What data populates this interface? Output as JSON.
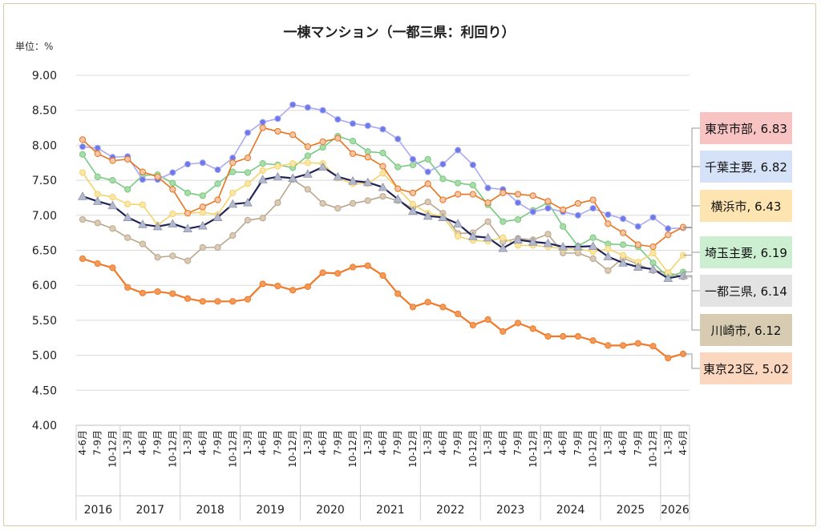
{
  "chart_data": {
    "type": "line",
    "title": "一棟マンション（一都三県：利回り）",
    "unit_label": "単位：%",
    "ylim": [
      4.0,
      9.0
    ],
    "y_ticks": [
      "9.00",
      "8.50",
      "8.00",
      "7.50",
      "7.00",
      "6.50",
      "6.00",
      "5.50",
      "5.00",
      "4.50",
      "4.00"
    ],
    "grid": true,
    "legend_placement": "right",
    "categories": [
      "4-6月",
      "7-9月",
      "10-12月",
      "1-3月",
      "4-6月",
      "7-9月",
      "10-12月",
      "1-3月",
      "4-6月",
      "7-9月",
      "10-12月",
      "1-3月",
      "4-6月",
      "7-9月",
      "10-12月",
      "1-3月",
      "4-6月",
      "7-9月",
      "10-12月",
      "1-3月",
      "4-6月",
      "7-9月",
      "10-12月",
      "1-3月",
      "4-6月",
      "7-9月",
      "10-12月",
      "1-3月",
      "4-6月",
      "7-9月",
      "10-12月",
      "1-3月",
      "4-6月",
      "7-9月",
      "10-12月",
      "1-3月",
      "4-6月",
      "7-9月",
      "10-12月",
      "1-3月",
      "4-6月"
    ],
    "years": [
      {
        "label": "2016",
        "start": 0,
        "end": 2
      },
      {
        "label": "2017",
        "start": 3,
        "end": 6
      },
      {
        "label": "2018",
        "start": 7,
        "end": 10
      },
      {
        "label": "2019",
        "start": 11,
        "end": 14
      },
      {
        "label": "2020",
        "start": 15,
        "end": 18
      },
      {
        "label": "2021",
        "start": 19,
        "end": 22
      },
      {
        "label": "2022",
        "start": 23,
        "end": 26
      },
      {
        "label": "2023",
        "start": 27,
        "end": 30
      },
      {
        "label": "2024",
        "start": 31,
        "end": 34
      },
      {
        "label": "2025",
        "start": 35,
        "end": 38
      },
      {
        "label": "2026",
        "start": 39,
        "end": 40
      }
    ],
    "series": [
      {
        "name": "東京市部",
        "label": "東京市部, 6.83",
        "color": "#e8741f",
        "marker_fill": "#f6c6a6",
        "marker": "circle",
        "line_width": 1.6,
        "box_fill": "#f7c3c3",
        "values": [
          8.08,
          7.88,
          7.78,
          7.8,
          7.62,
          7.55,
          7.37,
          7.03,
          7.12,
          7.22,
          7.75,
          7.82,
          8.25,
          8.2,
          8.15,
          7.98,
          8.05,
          8.1,
          7.88,
          7.83,
          7.7,
          7.38,
          7.32,
          7.45,
          7.22,
          7.3,
          7.3,
          7.18,
          7.32,
          7.3,
          7.28,
          7.2,
          7.08,
          7.17,
          7.22,
          6.88,
          6.75,
          6.58,
          6.55,
          6.72,
          6.83
        ]
      },
      {
        "name": "千葉主要",
        "label": "千葉主要, 6.82",
        "color": "#a9aaf0",
        "marker_fill": "#6d79e8",
        "marker": "circle",
        "line_width": 1.6,
        "box_fill": "#d6e2f7",
        "values": [
          7.98,
          7.96,
          7.83,
          7.84,
          7.51,
          7.51,
          7.61,
          7.73,
          7.75,
          7.65,
          7.82,
          8.18,
          8.33,
          8.38,
          8.58,
          8.54,
          8.5,
          8.37,
          8.31,
          8.28,
          8.23,
          8.09,
          7.8,
          7.62,
          7.73,
          7.93,
          7.72,
          7.39,
          7.37,
          7.18,
          7.05,
          7.1,
          7.05,
          7.0,
          7.1,
          7.01,
          6.95,
          6.84,
          6.97,
          6.81,
          6.82
        ]
      },
      {
        "name": "横浜市",
        "label": "横浜市, 6.43",
        "color": "#f5d36b",
        "marker_fill": "#fae7a8",
        "marker": "circle",
        "line_width": 1.6,
        "box_fill": "#fde4b1",
        "values": [
          7.61,
          7.3,
          7.26,
          7.16,
          7.15,
          6.86,
          7.02,
          7.03,
          7.04,
          7.01,
          7.32,
          7.45,
          7.64,
          7.7,
          7.74,
          7.75,
          7.74,
          7.53,
          7.45,
          7.45,
          7.6,
          7.38,
          7.16,
          7.03,
          6.98,
          6.7,
          6.64,
          6.63,
          6.68,
          6.57,
          6.57,
          6.55,
          6.52,
          6.52,
          6.48,
          6.52,
          6.43,
          6.33,
          6.46,
          6.18,
          6.43
        ]
      },
      {
        "name": "埼玉主要",
        "label": "埼玉主要, 6.19",
        "color": "#78c982",
        "marker_fill": "#a9dca9",
        "marker": "circle",
        "line_width": 1.6,
        "box_fill": "#ccefd1",
        "values": [
          7.87,
          7.55,
          7.5,
          7.37,
          7.57,
          7.58,
          7.46,
          7.32,
          7.28,
          7.45,
          7.62,
          7.61,
          7.74,
          7.72,
          7.68,
          7.85,
          7.97,
          8.13,
          8.06,
          7.91,
          7.89,
          7.69,
          7.72,
          7.8,
          7.52,
          7.46,
          7.43,
          7.15,
          6.91,
          6.94,
          7.07,
          7.18,
          6.84,
          6.56,
          6.68,
          6.59,
          6.58,
          6.55,
          6.32,
          6.12,
          6.19
        ]
      },
      {
        "name": "一都三県",
        "label": "一都三県, 6.14",
        "color": "#1f2359",
        "marker_fill": "#b4b8cc",
        "marker": "triangle",
        "line_width": 2.2,
        "box_fill": "#e3e3e3",
        "values": [
          7.27,
          7.2,
          7.14,
          6.97,
          6.87,
          6.84,
          6.88,
          6.81,
          6.85,
          6.97,
          7.16,
          7.18,
          7.51,
          7.55,
          7.53,
          7.59,
          7.69,
          7.55,
          7.49,
          7.47,
          7.4,
          7.23,
          7.06,
          6.99,
          6.97,
          6.88,
          6.7,
          6.68,
          6.53,
          6.65,
          6.62,
          6.6,
          6.55,
          6.55,
          6.56,
          6.41,
          6.32,
          6.26,
          6.23,
          6.1,
          6.14
        ]
      },
      {
        "name": "川崎市",
        "label": "川崎市, 6.12",
        "color": "#b9a78d",
        "marker_fill": "#dccbb4",
        "marker": "circle",
        "line_width": 1.6,
        "box_fill": "#d7cbb2",
        "values": [
          6.94,
          6.89,
          6.81,
          6.68,
          6.59,
          6.4,
          6.42,
          6.35,
          6.54,
          6.54,
          6.71,
          6.93,
          6.96,
          7.18,
          7.51,
          7.37,
          7.17,
          7.1,
          7.17,
          7.21,
          7.27,
          7.21,
          7.1,
          7.19,
          7.03,
          6.74,
          6.75,
          6.91,
          6.62,
          6.67,
          6.65,
          6.73,
          6.46,
          6.46,
          6.38,
          6.21,
          6.39,
          6.3,
          6.21,
          6.18,
          6.12
        ]
      },
      {
        "name": "東京23区",
        "label": "東京23区, 5.02",
        "color": "#f07a2a",
        "marker_fill": "#f39a58",
        "marker": "circle",
        "line_width": 2.2,
        "box_fill": "#fcd7c0",
        "values": [
          6.38,
          6.31,
          6.25,
          5.97,
          5.89,
          5.91,
          5.88,
          5.81,
          5.77,
          5.77,
          5.77,
          5.8,
          6.02,
          5.99,
          5.93,
          5.98,
          6.18,
          6.17,
          6.26,
          6.28,
          6.14,
          5.88,
          5.69,
          5.76,
          5.69,
          5.59,
          5.43,
          5.51,
          5.34,
          5.46,
          5.38,
          5.27,
          5.27,
          5.27,
          5.21,
          5.14,
          5.14,
          5.17,
          5.13,
          4.96,
          5.02
        ]
      }
    ]
  }
}
